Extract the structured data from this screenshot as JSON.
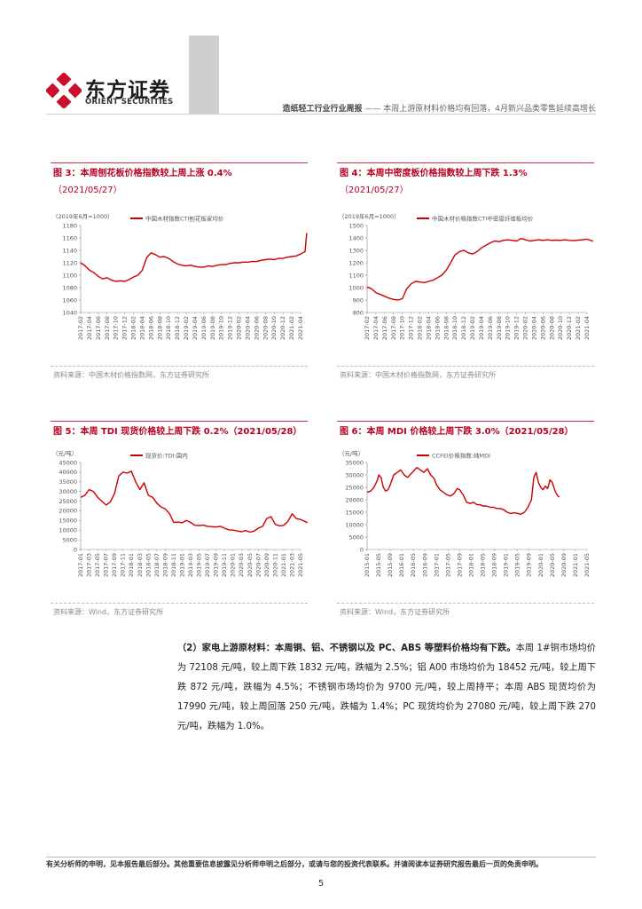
{
  "header": {
    "brand_cn": "东方证券",
    "brand_en": "ORIENT SECURITIES",
    "report_type": "造纸轻工行业行业周报",
    "separator": "——",
    "report_subtitle": "本周上游原材料价格均有回落，4月新兴品类零售延续高增长"
  },
  "figures": [
    {
      "title": "图 3：本周刨花板价格指数较上周上涨 0.4%",
      "subtitle": "（2021/05/27）",
      "source": "资料来源：中国木材价格指数网，东方证券研究所",
      "chart_data": {
        "type": "line",
        "yunit": "（2019年6月=1000）",
        "series": [
          {
            "name": "中国木材指数CTI刨花板家均价",
            "color": "#cc0000"
          }
        ],
        "ylim": [
          1040,
          1180
        ],
        "yticks": [
          1040,
          1060,
          1080,
          1100,
          1120,
          1140,
          1160,
          1180
        ],
        "xticks": [
          "2017-02",
          "2017-04",
          "2017-06",
          "2017-08",
          "2017-10",
          "2017-12",
          "2018-02",
          "2018-04",
          "2018-06",
          "2018-08",
          "2018-10",
          "2018-12",
          "2019-02",
          "2019-04",
          "2019-06",
          "2019-08",
          "2019-10",
          "2019-12",
          "2020-02",
          "2020-04",
          "2020-06",
          "2020-08",
          "2020-10",
          "2020-12",
          "2021-02",
          "2021-04"
        ],
        "points": [
          [
            0,
            1120
          ],
          [
            0.5,
            1115
          ],
          [
            1,
            1108
          ],
          [
            1.5,
            1104
          ],
          [
            2,
            1098
          ],
          [
            2.5,
            1094
          ],
          [
            3,
            1096
          ],
          [
            3.5,
            1092
          ],
          [
            4,
            1090
          ],
          [
            4.5,
            1091
          ],
          [
            5,
            1090
          ],
          [
            5.5,
            1093
          ],
          [
            6,
            1097
          ],
          [
            6.5,
            1100
          ],
          [
            7,
            1108
          ],
          [
            7.5,
            1128
          ],
          [
            8,
            1136
          ],
          [
            8.5,
            1133
          ],
          [
            9,
            1129
          ],
          [
            9.5,
            1130
          ],
          [
            10,
            1127
          ],
          [
            10.5,
            1122
          ],
          [
            11,
            1118
          ],
          [
            11.5,
            1116
          ],
          [
            12,
            1115
          ],
          [
            12.5,
            1116
          ],
          [
            13,
            1114
          ],
          [
            13.5,
            1113
          ],
          [
            14,
            1113
          ],
          [
            14.5,
            1115
          ],
          [
            15,
            1114
          ],
          [
            15.5,
            1116
          ],
          [
            16,
            1117
          ],
          [
            16.5,
            1117
          ],
          [
            17,
            1119
          ],
          [
            17.5,
            1120
          ],
          [
            18,
            1120
          ],
          [
            18.5,
            1121
          ],
          [
            19,
            1121
          ],
          [
            19.5,
            1122
          ],
          [
            20,
            1122
          ],
          [
            20.5,
            1124
          ],
          [
            21,
            1125
          ],
          [
            21.5,
            1126
          ],
          [
            22,
            1125
          ],
          [
            22.5,
            1127
          ],
          [
            23,
            1127
          ],
          [
            23.5,
            1129
          ],
          [
            24,
            1130
          ],
          [
            24.5,
            1131
          ],
          [
            25,
            1134
          ],
          [
            25.5,
            1138
          ],
          [
            25.7,
            1168
          ]
        ]
      }
    },
    {
      "title": "图 4：本周中密度板价格指数较上周下跌 1.3%",
      "subtitle": "（2021/05/27）",
      "source": "资料来源：中国木材价格指数网，东方证券研究所",
      "chart_data": {
        "type": "line",
        "yunit": "（2019年6月=1000）",
        "series": [
          {
            "name": "中国木材价格指数CTI中密度纤维板均价",
            "color": "#cc0000"
          }
        ],
        "ylim": [
          800,
          1500
        ],
        "yticks": [
          800,
          900,
          1000,
          1100,
          1200,
          1300,
          1400,
          1500
        ],
        "xticks": [
          "2017-02",
          "2017-04",
          "2017-06",
          "2017-08",
          "2017-10",
          "2017-12",
          "2018-02",
          "2018-04",
          "2018-06",
          "2018-08",
          "2018-10",
          "2018-12",
          "2019-02",
          "2019-04",
          "2019-06",
          "2019-08",
          "2019-10",
          "2019-12",
          "2020-02",
          "2020-04",
          "2020-06",
          "2020-08",
          "2020-10",
          "2020-12",
          "2021-02",
          "2021-04"
        ],
        "points": [
          [
            0,
            1005
          ],
          [
            0.5,
            990
          ],
          [
            1,
            960
          ],
          [
            1.5,
            945
          ],
          [
            2,
            930
          ],
          [
            2.5,
            915
          ],
          [
            3,
            905
          ],
          [
            3.5,
            900
          ],
          [
            4,
            910
          ],
          [
            4.5,
            990
          ],
          [
            5,
            1030
          ],
          [
            5.5,
            1050
          ],
          [
            6,
            1045
          ],
          [
            6.5,
            1040
          ],
          [
            7,
            1050
          ],
          [
            7.5,
            1060
          ],
          [
            8,
            1080
          ],
          [
            8.5,
            1100
          ],
          [
            9,
            1140
          ],
          [
            9.5,
            1200
          ],
          [
            10,
            1265
          ],
          [
            10.5,
            1290
          ],
          [
            11,
            1300
          ],
          [
            11.5,
            1280
          ],
          [
            12,
            1270
          ],
          [
            12.5,
            1290
          ],
          [
            13,
            1320
          ],
          [
            13.5,
            1340
          ],
          [
            14,
            1360
          ],
          [
            14.5,
            1375
          ],
          [
            15,
            1370
          ],
          [
            15.5,
            1380
          ],
          [
            16,
            1385
          ],
          [
            16.5,
            1380
          ],
          [
            17,
            1375
          ],
          [
            17.5,
            1395
          ],
          [
            18,
            1385
          ],
          [
            18.5,
            1375
          ],
          [
            19,
            1380
          ],
          [
            19.5,
            1385
          ],
          [
            20,
            1380
          ],
          [
            20.5,
            1385
          ],
          [
            21,
            1380
          ],
          [
            21.5,
            1382
          ],
          [
            22,
            1380
          ],
          [
            22.5,
            1385
          ],
          [
            23,
            1380
          ],
          [
            23.5,
            1378
          ],
          [
            24,
            1382
          ],
          [
            24.5,
            1385
          ],
          [
            25,
            1390
          ],
          [
            25.7,
            1372
          ]
        ]
      }
    },
    {
      "title": "图 5：本周 TDI 现货价格较上周下跌 0.2%（2021/05/28）",
      "subtitle": "",
      "source": "资料来源：Wind，东方证券研究所",
      "chart_data": {
        "type": "line",
        "yunit": "（元/吨）",
        "series": [
          {
            "name": "现货价:TDI:国内",
            "color": "#cc0000"
          }
        ],
        "ylim": [
          0,
          45000
        ],
        "yticks": [
          0,
          5000,
          10000,
          15000,
          20000,
          25000,
          30000,
          35000,
          40000,
          45000
        ],
        "xticks": [
          "2017-01",
          "2017-03",
          "2017-05",
          "2017-07",
          "2017-09",
          "2017-11",
          "2018-01",
          "2018-03",
          "2018-05",
          "2018-07",
          "2018-09",
          "2018-11",
          "2019-01",
          "2019-03",
          "2019-05",
          "2019-07",
          "2019-09",
          "2019-11",
          "2020-01",
          "2020-03",
          "2020-05",
          "2020-07",
          "2020-09",
          "2020-11",
          "2021-01",
          "2021-03",
          "2021-05"
        ],
        "points": [
          [
            0,
            27000
          ],
          [
            0.5,
            28000
          ],
          [
            1,
            31000
          ],
          [
            1.5,
            30000
          ],
          [
            2,
            27000
          ],
          [
            2.5,
            25000
          ],
          [
            3,
            23000
          ],
          [
            3.5,
            24500
          ],
          [
            4,
            29000
          ],
          [
            4.5,
            38000
          ],
          [
            5,
            40000
          ],
          [
            5.5,
            39500
          ],
          [
            6,
            40500
          ],
          [
            6.5,
            35000
          ],
          [
            7,
            31000
          ],
          [
            7.5,
            34500
          ],
          [
            8,
            28000
          ],
          [
            8.5,
            27000
          ],
          [
            9,
            24000
          ],
          [
            9.5,
            22000
          ],
          [
            10,
            21000
          ],
          [
            10.5,
            18500
          ],
          [
            11,
            14000
          ],
          [
            11.5,
            14200
          ],
          [
            12,
            13800
          ],
          [
            12.5,
            15000
          ],
          [
            13,
            14000
          ],
          [
            13.5,
            12500
          ],
          [
            14,
            12400
          ],
          [
            14.5,
            12600
          ],
          [
            15,
            12000
          ],
          [
            15.5,
            11800
          ],
          [
            16,
            11600
          ],
          [
            16.5,
            12000
          ],
          [
            17,
            11000
          ],
          [
            17.5,
            10200
          ],
          [
            18,
            10000
          ],
          [
            18.5,
            9600
          ],
          [
            19,
            9200
          ],
          [
            19.5,
            9800
          ],
          [
            20,
            9000
          ],
          [
            20.5,
            9500
          ],
          [
            21,
            11000
          ],
          [
            21.5,
            12000
          ],
          [
            22,
            16000
          ],
          [
            22.5,
            17000
          ],
          [
            23,
            13000
          ],
          [
            23.5,
            12200
          ],
          [
            24,
            12500
          ],
          [
            24.5,
            14500
          ],
          [
            25,
            18500
          ],
          [
            25.5,
            16000
          ],
          [
            26,
            15500
          ],
          [
            26.5,
            14500
          ],
          [
            26.8,
            13800
          ]
        ]
      }
    },
    {
      "title": "图 6：本周 MDI 价格较上周下跌 3.0%（2021/05/28）",
      "subtitle": "",
      "source": "资料来源：Wind，东方证券研究所",
      "chart_data": {
        "type": "line",
        "yunit": "（元/吨）",
        "series": [
          {
            "name": "CCFEI价格指数:纯MDI",
            "color": "#cc0000"
          }
        ],
        "ylim": [
          0,
          35000
        ],
        "yticks": [
          0,
          5000,
          10000,
          15000,
          20000,
          25000,
          30000,
          35000
        ],
        "xticks": [
          "2015-01",
          "2015-05",
          "2015-09",
          "2016-01",
          "2016-05",
          "2016-09",
          "2017-01",
          "2017-05",
          "2017-09",
          "2018-01",
          "2018-05",
          "2018-09",
          "2019-01",
          "2019-05",
          "2019-09",
          "2020-01",
          "2020-05",
          "2020-09",
          "2021-01",
          "2021-05"
        ],
        "points": [
          [
            0,
            23000
          ],
          [
            0.3,
            23500
          ],
          [
            0.6,
            25000
          ],
          [
            0.9,
            28000
          ],
          [
            1,
            30000
          ],
          [
            1.2,
            29000
          ],
          [
            1.4,
            25000
          ],
          [
            1.6,
            23500
          ],
          [
            1.8,
            24000
          ],
          [
            2,
            26000
          ],
          [
            2.3,
            30000
          ],
          [
            2.6,
            31000
          ],
          [
            2.9,
            32000
          ],
          [
            3.2,
            30000
          ],
          [
            3.5,
            29000
          ],
          [
            3.8,
            30500
          ],
          [
            4,
            31500
          ],
          [
            4.3,
            33000
          ],
          [
            4.6,
            32000
          ],
          [
            4.9,
            31000
          ],
          [
            5.2,
            32500
          ],
          [
            5.5,
            30000
          ],
          [
            5.8,
            28500
          ],
          [
            6,
            26000
          ],
          [
            6.3,
            24000
          ],
          [
            6.6,
            23000
          ],
          [
            6.9,
            22000
          ],
          [
            7.2,
            21500
          ],
          [
            7.5,
            22500
          ],
          [
            7.8,
            24500
          ],
          [
            8,
            24000
          ],
          [
            8.3,
            22000
          ],
          [
            8.6,
            19000
          ],
          [
            8.9,
            18500
          ],
          [
            9.2,
            19000
          ],
          [
            9.5,
            18000
          ],
          [
            9.8,
            18000
          ],
          [
            10,
            17500
          ],
          [
            10.3,
            17500
          ],
          [
            10.6,
            17000
          ],
          [
            10.9,
            17000
          ],
          [
            11.2,
            16500
          ],
          [
            11.5,
            16500
          ],
          [
            11.8,
            16000
          ],
          [
            12.1,
            15000
          ],
          [
            12.4,
            14500
          ],
          [
            12.7,
            14800
          ],
          [
            13,
            14500
          ],
          [
            13.3,
            14200
          ],
          [
            13.6,
            15000
          ],
          [
            13.9,
            17000
          ],
          [
            14.2,
            20000
          ],
          [
            14.4,
            29000
          ],
          [
            14.6,
            31000
          ],
          [
            14.8,
            27000
          ],
          [
            15,
            25000
          ],
          [
            15.2,
            24000
          ],
          [
            15.4,
            25500
          ],
          [
            15.6,
            24500
          ],
          [
            15.8,
            28000
          ],
          [
            16,
            27000
          ],
          [
            16.2,
            24000
          ],
          [
            16.4,
            22000
          ],
          [
            16.6,
            21000
          ]
        ]
      }
    }
  ],
  "paragraph": {
    "lead": "（2）家电上游原材料：本周铜、铝、不锈钢以及 PC、ABS 等塑料价格均有下跌。",
    "body": "本周 1#铜市场均价为 72108 元/吨，较上周下跌 1832 元/吨，跌幅为 2.5%；铝 A00 市场均价为 18452 元/吨，较上周下跌 872 元/吨，跌幅为 4.5%；不锈钢市场均价为 9700 元/吨，较上周持平；本周 ABS 现货均价为 17990 元/吨，较上周回落 250 元/吨，跌幅为 1.4%；PC 现货均价为 27080 元/吨，较上周下跌 270 元/吨，跌幅为 1.0%。"
  },
  "footer": {
    "disclaimer": "有关分析师的申明，见本报告最后部分。其他重要信息披露见分析师申明之后部分，或请与您的投资代表联系。并请阅读本证券研究报告最后一页的免责申明。",
    "page_number": "5"
  }
}
